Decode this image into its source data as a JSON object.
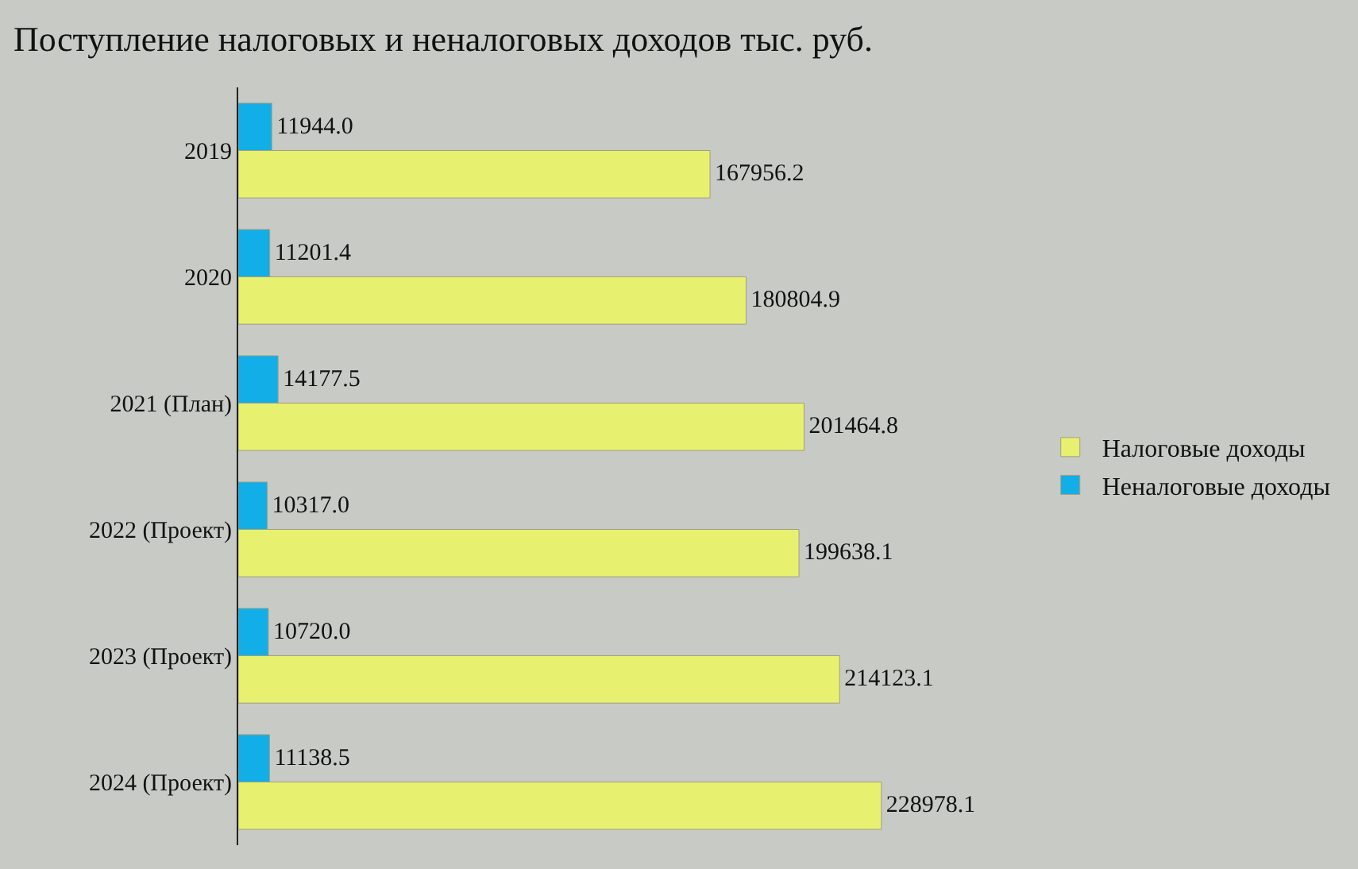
{
  "chart_data": {
    "type": "bar",
    "orientation": "horizontal",
    "title": "Поступление налоговых и неналоговых доходов тыс. руб.",
    "categories": [
      "2019",
      "2020",
      "2021 (План)",
      "2022 (Проект)",
      "2023 (Проект)",
      "2024 (Проект)"
    ],
    "series": [
      {
        "name": "Налоговые доходы",
        "color": "#e8f070",
        "values": [
          167956.2,
          180804.9,
          201464.8,
          199638.1,
          214123.1,
          228978.1
        ],
        "value_labels": [
          "167956.2",
          "180804.9",
          "201464.8",
          "199638.1",
          "214123.1",
          "228978.1"
        ]
      },
      {
        "name": "Неналоговые доходы",
        "color": "#12aee8",
        "values": [
          11944.0,
          11201.4,
          14177.5,
          10317.0,
          10720.0,
          11138.5
        ],
        "value_labels": [
          "11944.0",
          "11201.4",
          "14177.5",
          "10317.0",
          "10720.0",
          "11138.5"
        ]
      }
    ],
    "legend": "right",
    "tick_labels": "y",
    "grid": false
  }
}
